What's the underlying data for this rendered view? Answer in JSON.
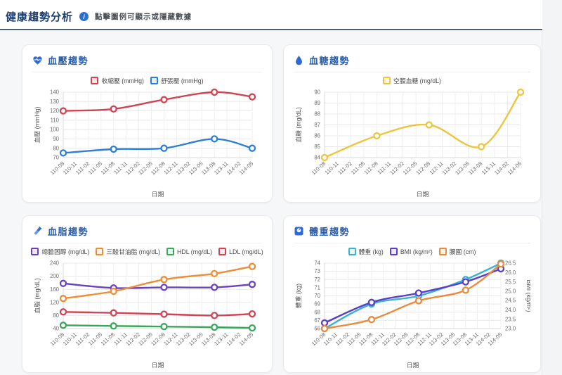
{
  "page": {
    "title": "健康趨勢分析",
    "subtitle": "點擊圖例可顯示或隱藏數據",
    "info_icon_glyph": "i",
    "accent_color": "#2d5fa8",
    "divider_color": "#4d5e73"
  },
  "date_axis": {
    "label": "日期",
    "categories": [
      "110-08",
      "110-11",
      "111-02",
      "111-05",
      "111-08",
      "111-11",
      "112-02",
      "112-05",
      "112-08",
      "112-11",
      "113-02",
      "113-05",
      "113-08",
      "113-11",
      "114-02",
      "114-05"
    ],
    "data_indices": [
      0,
      4,
      8,
      12,
      15
    ]
  },
  "chart_data": [
    {
      "id": "blood-pressure",
      "type": "line",
      "title": "血壓趨勢",
      "icon": "heart-pulse-icon",
      "xlabel": "日期",
      "ylabel": "血壓 (mmHg)",
      "y_min": 70,
      "y_max": 140,
      "y_step": 10,
      "x": [
        "110-08",
        "111-08",
        "112-08",
        "113-08",
        "114-05"
      ],
      "grid": true,
      "legend_position": "top",
      "series": [
        {
          "name": "收縮壓 (mmHg)",
          "color": "#cf4452",
          "values": [
            120,
            122,
            132,
            140,
            135
          ]
        },
        {
          "name": "舒張壓 (mmHg)",
          "color": "#2e7fd4",
          "values": [
            75,
            79,
            80,
            90,
            80
          ]
        }
      ]
    },
    {
      "id": "blood-sugar",
      "type": "line",
      "title": "血糖趨勢",
      "icon": "droplet-icon",
      "xlabel": "日期",
      "ylabel": "血糖 (mg/dL)",
      "y_min": 84,
      "y_max": 90,
      "y_step": 1,
      "x": [
        "110-08",
        "111-08",
        "112-08",
        "113-08",
        "114-05"
      ],
      "grid": true,
      "legend_position": "top",
      "series": [
        {
          "name": "空腹血糖 (mg/dL)",
          "color": "#edc53e",
          "values": [
            84,
            86,
            87,
            85,
            90
          ]
        }
      ]
    },
    {
      "id": "blood-lipid",
      "type": "line",
      "title": "血脂趨勢",
      "icon": "test-tube-icon",
      "xlabel": "日期",
      "ylabel": "血脂 (mg/dL)",
      "y_min": 40,
      "y_max": 240,
      "y_step": 40,
      "x": [
        "110-08",
        "111-08",
        "112-08",
        "113-08",
        "114-05"
      ],
      "grid": true,
      "legend_position": "top",
      "series": [
        {
          "name": "總膽固醇 (mg/dL)",
          "color": "#6a42c1",
          "values": [
            178,
            164,
            166,
            166,
            175
          ]
        },
        {
          "name": "三酸甘油脂 (mg/dL)",
          "color": "#ef8d35",
          "values": [
            132,
            154,
            190,
            208,
            230
          ]
        },
        {
          "name": "HDL (mg/dL)",
          "color": "#3aa65a",
          "values": [
            50,
            48,
            46,
            44,
            42
          ]
        },
        {
          "name": "LDL (mg/dL)",
          "color": "#cf4452",
          "values": [
            91,
            88,
            84,
            80,
            85
          ]
        }
      ]
    },
    {
      "id": "weight",
      "type": "line",
      "title": "體重趨勢",
      "icon": "scale-icon",
      "xlabel": "日期",
      "ylabel": "體重 (kg)",
      "y_min": 66,
      "y_max": 74,
      "y_step": 1,
      "right_axis": {
        "label": "BMI (kg/m²)",
        "min": 23.0,
        "max": 26.5,
        "step": 0.5
      },
      "x": [
        "110-08",
        "111-08",
        "112-08",
        "113-08",
        "114-05"
      ],
      "grid": true,
      "legend_position": "top",
      "series": [
        {
          "name": "體重 (kg)",
          "color": "#38b3cf",
          "axis": "left",
          "values": [
            66,
            69,
            70,
            72,
            74
          ]
        },
        {
          "name": "BMI (kg/m²)",
          "color": "#5b3ec9",
          "axis": "right",
          "values": [
            23.3,
            24.4,
            24.9,
            25.5,
            26.2
          ]
        },
        {
          "name": "腰圍 (cm)",
          "color": "#ea8a3c",
          "axis": "left",
          "values": [
            66,
            67.1,
            69.4,
            70.7,
            73.9
          ],
          "note": "waist axis hidden in UI; values are plotted positions on left-axis scale"
        }
      ]
    }
  ]
}
